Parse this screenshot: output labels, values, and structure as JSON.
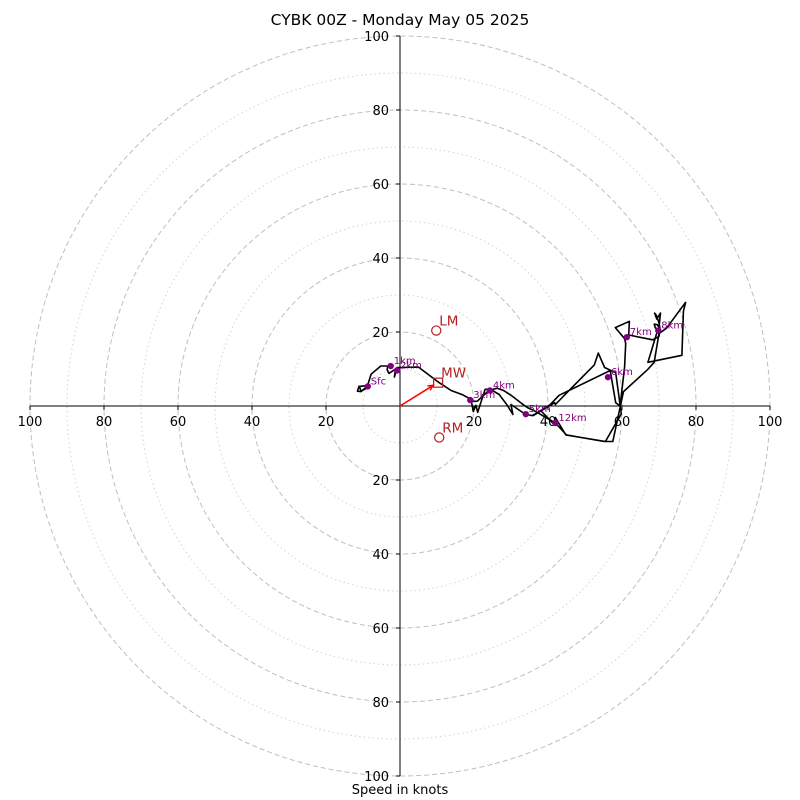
{
  "chart_data": {
    "type": "hodograph",
    "title": "CYBK 00Z - Monday May 05 2025",
    "xlabel": "Speed in knots",
    "ylabel": "",
    "rlim": [
      0,
      100
    ],
    "axis_ticks": [
      "20",
      "40",
      "60",
      "80",
      "100"
    ],
    "major_rings": [
      20,
      40,
      60,
      80,
      100
    ],
    "minor_rings": [
      10,
      30,
      50,
      70,
      90
    ],
    "grid": true,
    "colors": {
      "hodograph_line": "#000000",
      "height_markers": "#800080",
      "motion_markers": "#b22222",
      "mean_wind_vector": "#ff0000",
      "major_grid": "#bfbfbf",
      "minor_grid": "#d3d3d3"
    },
    "hodograph_trace": [
      [
        -11.0,
        5.5
      ],
      [
        -11.5,
        4.0
      ],
      [
        -10.5,
        3.9
      ],
      [
        -8.7,
        5.5
      ],
      [
        -11.0,
        5.3
      ],
      [
        -10.5,
        4.0
      ],
      [
        -9.0,
        4.8
      ],
      [
        -7.8,
        8.6
      ],
      [
        -5.2,
        10.8
      ],
      [
        -3.3,
        10.8
      ],
      [
        -3.5,
        9.8
      ],
      [
        -3.0,
        8.8
      ],
      [
        -1.2,
        10.0
      ],
      [
        -1.5,
        7.8
      ],
      [
        -0.8,
        10.4
      ],
      [
        5.0,
        10.5
      ],
      [
        10.3,
        6.5
      ],
      [
        13.8,
        4.2
      ],
      [
        17.0,
        3.0
      ],
      [
        19.2,
        1.8
      ],
      [
        19.8,
        -1.5
      ],
      [
        20.5,
        0.2
      ],
      [
        21.0,
        -1.7
      ],
      [
        23.0,
        4.5
      ],
      [
        24.3,
        4.6
      ],
      [
        26.8,
        3.1
      ],
      [
        29.0,
        0.2
      ],
      [
        30.5,
        -2.3
      ],
      [
        30.0,
        0.4
      ],
      [
        33.8,
        -2.2
      ],
      [
        35.7,
        -2.6
      ],
      [
        36.8,
        -2.0
      ],
      [
        38.0,
        -1.2
      ],
      [
        41.5,
        -4.8
      ],
      [
        42.0,
        -3.1
      ],
      [
        44.8,
        -7.8
      ],
      [
        55.5,
        -9.6
      ],
      [
        59.8,
        -2.1
      ],
      [
        58.3,
        9.0
      ],
      [
        55.3,
        10.4
      ],
      [
        53.6,
        14.3
      ],
      [
        52.5,
        11.1
      ],
      [
        44.8,
        3.3
      ],
      [
        42.0,
        0.4
      ],
      [
        41.8,
        0.9
      ],
      [
        36.0,
        -2.6
      ],
      [
        40.5,
        0.3
      ],
      [
        43.0,
        2.9
      ],
      [
        56.8,
        9.6
      ],
      [
        58.3,
        0.9
      ],
      [
        59.5,
        0.0
      ],
      [
        60.7,
        10.6
      ],
      [
        61.0,
        16.9
      ],
      [
        60.7,
        18.2
      ],
      [
        58.2,
        21.2
      ],
      [
        62.0,
        22.9
      ],
      [
        61.8,
        19.2
      ],
      [
        68.3,
        17.9
      ],
      [
        70.0,
        18.8
      ],
      [
        70.3,
        20.6
      ],
      [
        70.0,
        22.5
      ],
      [
        69.3,
        24.5
      ],
      [
        68.8,
        25.1
      ],
      [
        69.4,
        23.5
      ],
      [
        70.4,
        25.1
      ],
      [
        70.0,
        21.3
      ],
      [
        69.5,
        22.0
      ],
      [
        68.7,
        22.1
      ],
      [
        69.0,
        21.1
      ],
      [
        70.3,
        20.5
      ],
      [
        69.5,
        20.1
      ],
      [
        67.0,
        11.8
      ],
      [
        76.2,
        13.7
      ],
      [
        76.6,
        25.6
      ],
      [
        77.2,
        28.0
      ],
      [
        72.0,
        21.0
      ],
      [
        70.0,
        19.6
      ],
      [
        68.7,
        11.8
      ],
      [
        66.9,
        9.8
      ],
      [
        60.4,
        3.9
      ],
      [
        57.5,
        -9.6
      ],
      [
        55.2,
        -9.6
      ],
      [
        45.0,
        -7.8
      ],
      [
        42.0,
        -4.6
      ],
      [
        36.5,
        -1.4
      ],
      [
        34.4,
        -0.4
      ],
      [
        33.0,
        0.6
      ],
      [
        30.0,
        2.9
      ],
      [
        28.0,
        4.2
      ],
      [
        26.3,
        4.8
      ],
      [
        24.0,
        4.2
      ],
      [
        20.9,
        1.3
      ],
      [
        18.6,
        1.2
      ]
    ],
    "height_markers": [
      {
        "label": "Sfc",
        "u": -8.7,
        "v": 5.3
      },
      {
        "label": "1km",
        "u": -2.5,
        "v": 10.8
      },
      {
        "label": "2km",
        "u": -0.8,
        "v": 9.6
      },
      {
        "label": "3km",
        "u": 19.0,
        "v": 1.6
      },
      {
        "label": "4km",
        "u": 24.3,
        "v": 4.2
      },
      {
        "label": "5km",
        "u": 34.0,
        "v": -2.2
      },
      {
        "label": "6km",
        "u": 56.2,
        "v": 7.8
      },
      {
        "label": "7km",
        "u": 61.3,
        "v": 18.6
      },
      {
        "label": "8km",
        "u": 69.8,
        "v": 20.4
      },
      {
        "label": "12km",
        "u": 42.0,
        "v": -4.6
      }
    ],
    "storm_motion": [
      {
        "label": "LM",
        "u": 9.8,
        "v": 20.4,
        "marker": "circle"
      },
      {
        "label": "MW",
        "u": 10.3,
        "v": 6.3,
        "marker": "square"
      },
      {
        "label": "RM",
        "u": 10.6,
        "v": -8.5,
        "marker": "circle"
      }
    ],
    "mean_wind_vector": {
      "u": 9.0,
      "v": 5.6
    }
  }
}
